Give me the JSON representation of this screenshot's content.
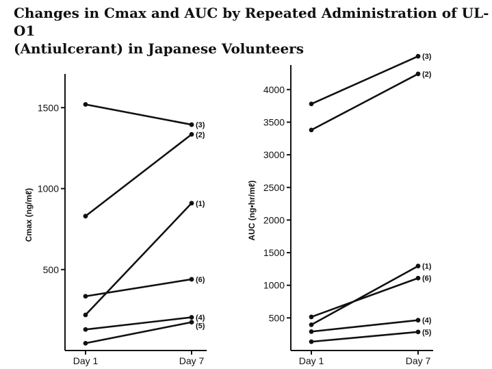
{
  "title_line1": "Changes in Cmax and AUC by Repeated Administration of UL-O1",
  "title_line2": "(Antiulcerant) in Japanese Volunteers",
  "chart_data": [
    {
      "type": "line",
      "ylabel": "Cmax  (ng/mℓ)",
      "categories": [
        "Day 1",
        "Day 7"
      ],
      "yticks": [
        500,
        1000,
        1500
      ],
      "ylim": [
        0,
        1700
      ],
      "series": [
        {
          "name": "(3)",
          "values": [
            1520,
            1395
          ]
        },
        {
          "name": "(2)",
          "values": [
            830,
            1335
          ]
        },
        {
          "name": "(1)",
          "values": [
            220,
            910
          ]
        },
        {
          "name": "(6)",
          "values": [
            335,
            440
          ]
        },
        {
          "name": "(4)",
          "values": [
            130,
            205
          ]
        },
        {
          "name": "(5)",
          "values": [
            45,
            175
          ]
        }
      ]
    },
    {
      "type": "line",
      "ylabel": "AUC  (ng•hr/mℓ)",
      "categories": [
        "Day 1",
        "Day 7"
      ],
      "yticks": [
        500,
        1000,
        1500,
        2000,
        2500,
        3000,
        3500,
        4000
      ],
      "ylim": [
        0,
        4400
      ],
      "series": [
        {
          "name": "(3)",
          "values": [
            3780,
            4510
          ]
        },
        {
          "name": "(2)",
          "values": [
            3380,
            4240
          ]
        },
        {
          "name": "(1)",
          "values": [
            395,
            1295
          ]
        },
        {
          "name": "(6)",
          "values": [
            515,
            1110
          ]
        },
        {
          "name": "(4)",
          "values": [
            290,
            465
          ]
        },
        {
          "name": "(5)",
          "values": [
            135,
            285
          ]
        }
      ]
    }
  ]
}
